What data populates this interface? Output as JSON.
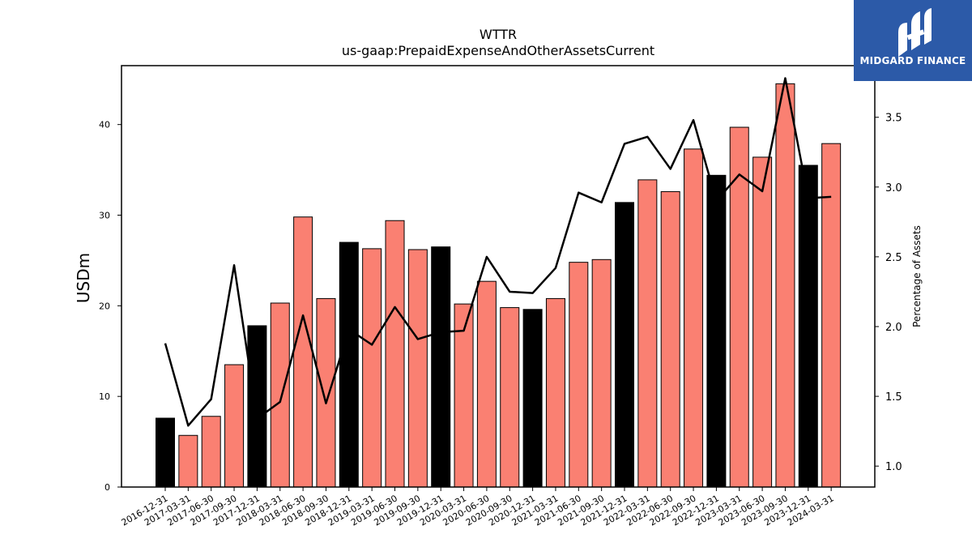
{
  "chart_data": {
    "type": "bar",
    "title": "WTTR",
    "subtitle": "us-gaap:PrepaidExpenseAndOtherAssetsCurrent",
    "ylabel": "USDm",
    "y2label": "Percentage of Assets",
    "ylim": [
      0,
      46.5
    ],
    "y2lim": [
      0.85,
      3.87
    ],
    "yticks": [
      0,
      10,
      20,
      30,
      40
    ],
    "y2ticks": [
      1.0,
      1.5,
      2.0,
      2.5,
      3.0,
      3.5
    ],
    "categories": [
      "2016-12-31",
      "2017-03-31",
      "2017-06-30",
      "2017-09-30",
      "2017-12-31",
      "2018-03-31",
      "2018-06-30",
      "2018-09-30",
      "2018-12-31",
      "2019-03-31",
      "2019-06-30",
      "2019-09-30",
      "2019-12-31",
      "2020-03-31",
      "2020-06-30",
      "2020-09-30",
      "2020-12-31",
      "2021-03-31",
      "2021-06-30",
      "2021-09-30",
      "2021-12-31",
      "2022-03-31",
      "2022-06-30",
      "2022-09-30",
      "2022-12-31",
      "2023-03-31",
      "2023-06-30",
      "2023-09-30",
      "2023-12-31",
      "2024-03-31"
    ],
    "series": [
      {
        "kind": "bar",
        "values": [
          7.6,
          5.7,
          7.8,
          13.5,
          17.8,
          20.3,
          29.8,
          20.8,
          27.0,
          26.3,
          29.4,
          26.2,
          26.5,
          20.2,
          22.7,
          19.8,
          19.6,
          20.8,
          24.8,
          25.1,
          31.4,
          33.9,
          32.6,
          37.3,
          34.4,
          39.7,
          36.4,
          44.5,
          35.5,
          37.9
        ],
        "year_end_color": "#000000",
        "color": "#fa8072"
      },
      {
        "kind": "line",
        "axis": "right",
        "values": [
          1.88,
          1.29,
          1.48,
          2.44,
          1.34,
          1.46,
          2.08,
          1.45,
          1.98,
          1.87,
          2.14,
          1.91,
          1.96,
          1.97,
          2.5,
          2.25,
          2.24,
          2.42,
          2.96,
          2.89,
          3.31,
          3.36,
          3.13,
          3.48,
          2.9,
          3.09,
          2.97,
          3.78,
          2.92,
          2.93
        ],
        "color": "#000000"
      }
    ],
    "grid": false,
    "legend": "none"
  },
  "logo": {
    "text": "MIDGARD FINANCE",
    "background": "#2c5aa8",
    "icon": "midgard-logo-icon"
  }
}
